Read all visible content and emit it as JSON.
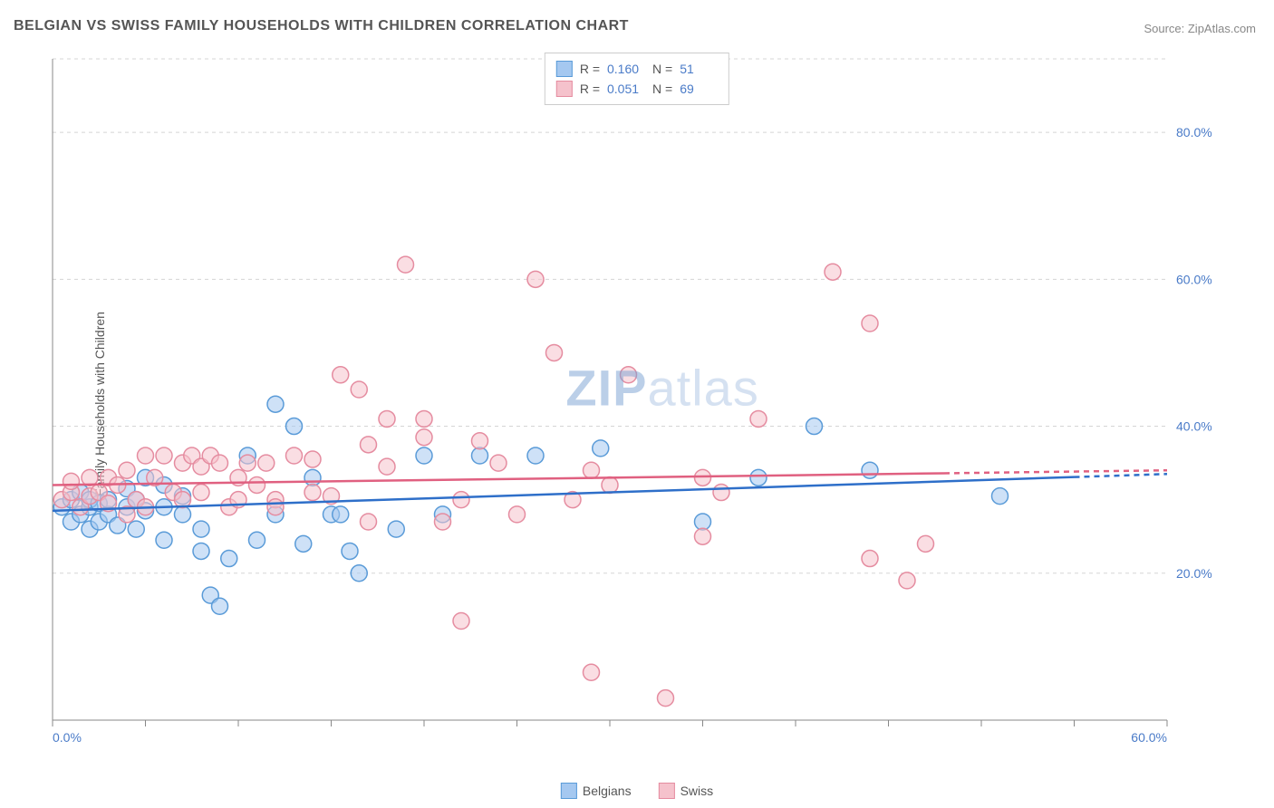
{
  "title": "BELGIAN VS SWISS FAMILY HOUSEHOLDS WITH CHILDREN CORRELATION CHART",
  "source": "Source: ZipAtlas.com",
  "watermark": {
    "zip": "ZIP",
    "atlas": "atlas"
  },
  "ylabel": "Family Households with Children",
  "legend_bottom": [
    {
      "label": "Belgians",
      "fill": "#a5c8f0",
      "stroke": "#5a9bd8"
    },
    {
      "label": "Swiss",
      "fill": "#f5c2cc",
      "stroke": "#e58ca0"
    }
  ],
  "stats": [
    {
      "swatch_fill": "#a5c8f0",
      "swatch_stroke": "#5a9bd8",
      "r_label": "R =",
      "r_val": "0.160",
      "n_label": "N =",
      "n_val": "51"
    },
    {
      "swatch_fill": "#f5c2cc",
      "swatch_stroke": "#e58ca0",
      "r_label": "R =",
      "r_val": "0.051",
      "n_label": "N =",
      "n_val": "69"
    }
  ],
  "chart": {
    "type": "scatter",
    "plot_bg": "#ffffff",
    "grid_color": "#d5d5d5",
    "axis_color": "#888888",
    "tick_label_color": "#4a7bc8",
    "tick_fontsize": 14,
    "xlim": [
      0,
      60
    ],
    "ylim": [
      0,
      90
    ],
    "x_ticks": [
      0,
      5,
      10,
      15,
      20,
      25,
      30,
      35,
      40,
      45,
      50,
      55,
      60
    ],
    "x_tick_labels": {
      "0": "0.0%",
      "60": "60.0%"
    },
    "y_ticks": [
      20,
      40,
      60,
      80
    ],
    "y_tick_labels": {
      "20": "20.0%",
      "40": "40.0%",
      "60": "60.0%",
      "80": "80.0%"
    },
    "marker_radius": 9,
    "marker_stroke_width": 1.5,
    "series": [
      {
        "name": "Belgians",
        "fill": "rgba(165, 200, 240, 0.55)",
        "stroke": "#5a9bd8",
        "trend": {
          "color": "#2e6fc9",
          "width": 2.5,
          "y_start": 28.5,
          "y_end": 33.5,
          "solid_x_end": 55
        },
        "points": [
          [
            0.5,
            29
          ],
          [
            1,
            27
          ],
          [
            1,
            30
          ],
          [
            1.5,
            28
          ],
          [
            1.5,
            31
          ],
          [
            2,
            26
          ],
          [
            2,
            29
          ],
          [
            2,
            30
          ],
          [
            2.5,
            27
          ],
          [
            2.5,
            29.5
          ],
          [
            3,
            28
          ],
          [
            3,
            30
          ],
          [
            3.5,
            26.5
          ],
          [
            4,
            29
          ],
          [
            4,
            31.5
          ],
          [
            4.5,
            26
          ],
          [
            4.5,
            30
          ],
          [
            5,
            28.5
          ],
          [
            5,
            33
          ],
          [
            6,
            24.5
          ],
          [
            6,
            29
          ],
          [
            6,
            32
          ],
          [
            7,
            28
          ],
          [
            7,
            30.5
          ],
          [
            8,
            23
          ],
          [
            8,
            26
          ],
          [
            8.5,
            17
          ],
          [
            9,
            15.5
          ],
          [
            9.5,
            22
          ],
          [
            10.5,
            36
          ],
          [
            11,
            24.5
          ],
          [
            12,
            43
          ],
          [
            12,
            28
          ],
          [
            13,
            40
          ],
          [
            13.5,
            24
          ],
          [
            14,
            33
          ],
          [
            15,
            28
          ],
          [
            15.5,
            28
          ],
          [
            16,
            23
          ],
          [
            16.5,
            20
          ],
          [
            18.5,
            26
          ],
          [
            20,
            36
          ],
          [
            21,
            28
          ],
          [
            23,
            36
          ],
          [
            26,
            36
          ],
          [
            29.5,
            37
          ],
          [
            35,
            27
          ],
          [
            38,
            33
          ],
          [
            41,
            40
          ],
          [
            44,
            34
          ],
          [
            51,
            30.5
          ]
        ]
      },
      {
        "name": "Swiss",
        "fill": "rgba(245, 194, 204, 0.55)",
        "stroke": "#e58ca0",
        "trend": {
          "color": "#e06080",
          "width": 2.5,
          "y_start": 32,
          "y_end": 34,
          "solid_x_end": 48
        },
        "points": [
          [
            0.5,
            30
          ],
          [
            1,
            31
          ],
          [
            1,
            32.5
          ],
          [
            1.5,
            29
          ],
          [
            2,
            33
          ],
          [
            2,
            30.5
          ],
          [
            2.5,
            31
          ],
          [
            3,
            29.5
          ],
          [
            3,
            33
          ],
          [
            3.5,
            32
          ],
          [
            4,
            28
          ],
          [
            4,
            34
          ],
          [
            4.5,
            30
          ],
          [
            5,
            29
          ],
          [
            5,
            36
          ],
          [
            5.5,
            33
          ],
          [
            6,
            36
          ],
          [
            6.5,
            31
          ],
          [
            7,
            35
          ],
          [
            7,
            30
          ],
          [
            7.5,
            36
          ],
          [
            8,
            31
          ],
          [
            8,
            34.5
          ],
          [
            8.5,
            36
          ],
          [
            9,
            35
          ],
          [
            9.5,
            29
          ],
          [
            10,
            30
          ],
          [
            10,
            33
          ],
          [
            10.5,
            35
          ],
          [
            11,
            32
          ],
          [
            11.5,
            35
          ],
          [
            12,
            30
          ],
          [
            12,
            29
          ],
          [
            13,
            36
          ],
          [
            14,
            31
          ],
          [
            14,
            35.5
          ],
          [
            15,
            30.5
          ],
          [
            15.5,
            47
          ],
          [
            16.5,
            45
          ],
          [
            17,
            27
          ],
          [
            17,
            37.5
          ],
          [
            18,
            41
          ],
          [
            18,
            34.5
          ],
          [
            19,
            62
          ],
          [
            20,
            38.5
          ],
          [
            20,
            41
          ],
          [
            21,
            27
          ],
          [
            22,
            30
          ],
          [
            22,
            13.5
          ],
          [
            23,
            38
          ],
          [
            24,
            35
          ],
          [
            25,
            28
          ],
          [
            26,
            60
          ],
          [
            27,
            50
          ],
          [
            28,
            30
          ],
          [
            29,
            6.5
          ],
          [
            29,
            34
          ],
          [
            30,
            32
          ],
          [
            31,
            47
          ],
          [
            33,
            3
          ],
          [
            35,
            25
          ],
          [
            35,
            33
          ],
          [
            36,
            31
          ],
          [
            38,
            41
          ],
          [
            42,
            61
          ],
          [
            44,
            22
          ],
          [
            44,
            54
          ],
          [
            46,
            19
          ],
          [
            47,
            24
          ]
        ]
      }
    ]
  }
}
